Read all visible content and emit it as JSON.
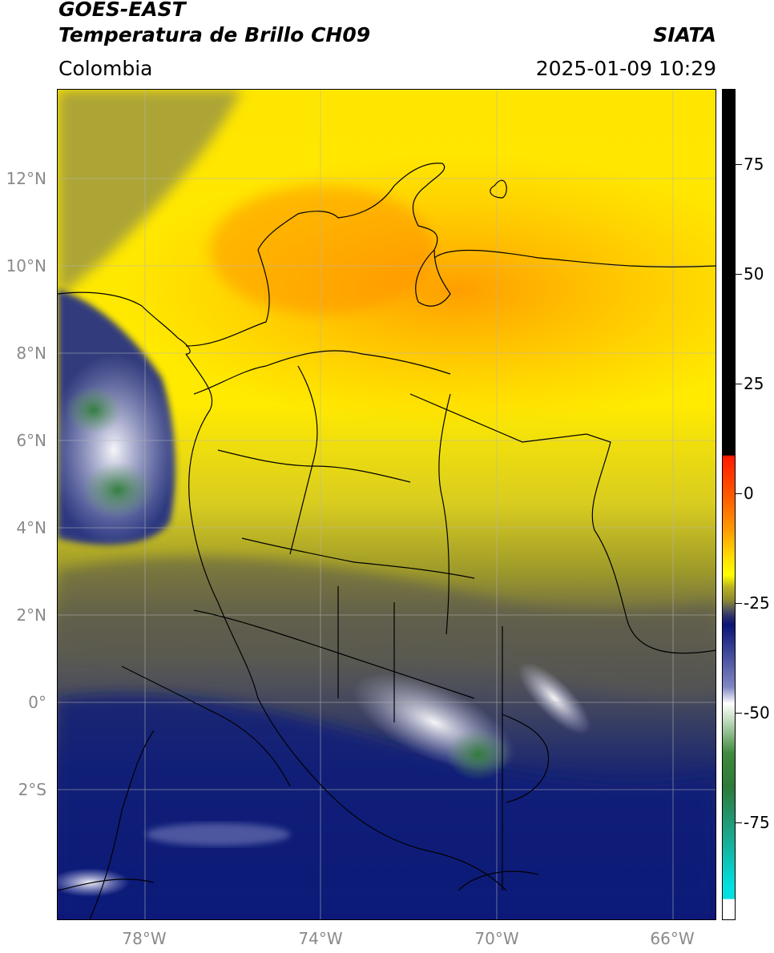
{
  "header": {
    "satellite": "GOES-EAST",
    "product": "Temperatura de Brillo CH09",
    "region": "Colombia",
    "brand": "SIATA",
    "datetime": "2025-01-09 10:29"
  },
  "axes": {
    "lat_labels": [
      "12°N",
      "10°N",
      "8°N",
      "6°N",
      "4°N",
      "2°N",
      "0°",
      "2°S"
    ],
    "lon_labels": [
      "78°W",
      "74°W",
      "70°W",
      "66°W"
    ]
  },
  "colorbar": {
    "labels": [
      "75",
      "50",
      "25",
      "0",
      "-25",
      "-50",
      "-75"
    ],
    "colors": {
      "black": "#000000",
      "red": "#ff1a00",
      "orange": "#ff8c00",
      "yellow": "#ffff00",
      "olive": "#9e9a2a",
      "gray": "#5a5a52",
      "navy": "#0a1577",
      "white": "#ffffff",
      "green": "#3e8a3e",
      "cyan": "#00e0e0"
    }
  }
}
